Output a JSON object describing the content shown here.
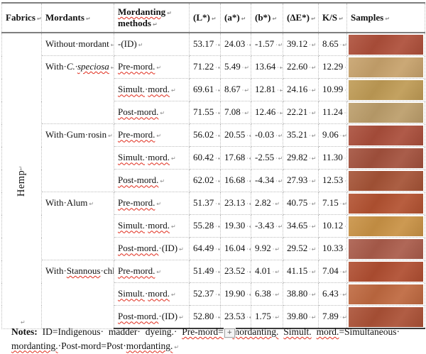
{
  "marks": {
    "cell": "↵",
    "num": "·↵"
  },
  "header": {
    "fabrics": [
      {
        "text": "Fabrics"
      },
      {
        "text": "↵",
        "mark": true
      }
    ],
    "mordants": [
      {
        "text": "Mordants"
      },
      {
        "text": "↵",
        "mark": true
      }
    ],
    "methods_line1": [
      {
        "text": "Mordanting",
        "sq": true
      },
      {
        "text": "↵",
        "mark": true
      }
    ],
    "methods_line2": [
      {
        "text": "methods"
      },
      {
        "text": "↵",
        "mark": true
      }
    ],
    "L": [
      {
        "text": "(L*)"
      },
      {
        "text": "↵",
        "mark": true
      }
    ],
    "a": [
      {
        "text": "(a*)"
      },
      {
        "text": "↵",
        "mark": true
      }
    ],
    "b": [
      {
        "text": "(b*)"
      },
      {
        "text": "↵",
        "mark": true
      }
    ],
    "dE": [
      {
        "text": "(ΔE*)"
      },
      {
        "text": "↵",
        "mark": true
      }
    ],
    "KS": [
      {
        "text": "K/S"
      },
      {
        "text": "↵",
        "mark": true
      }
    ],
    "samples": [
      {
        "text": "Samples"
      },
      {
        "text": "↵",
        "mark": true
      }
    ]
  },
  "fabric": [
    {
      "text": "Hemp"
    },
    {
      "text": "↵",
      "mark": true
    }
  ],
  "mordant_groups": [
    [
      {
        "text": "Without·mordant"
      }
    ],
    [
      {
        "text": "With·"
      },
      {
        "text": "C.·",
        "italic": true
      },
      {
        "text": "speciosa",
        "italic": true,
        "sq": true
      }
    ],
    [
      {
        "text": "With·Gum·rosin"
      }
    ],
    [
      {
        "text": "With·Alum"
      }
    ],
    [
      {
        "text": "With·"
      },
      {
        "text": "Stannous",
        "sq": true
      },
      {
        "text": "·chloride"
      }
    ]
  ],
  "rows": [
    {
      "method_parts": [
        {
          "text": "-(ID)"
        }
      ],
      "L": "53.17",
      "a": "24.03",
      "b": "-1.57",
      "dE": "39.12",
      "KS": "8.65",
      "sample_color": "#ae4f3a"
    },
    {
      "method_parts": [
        {
          "text": "Pre-mord.",
          "sq": true
        }
      ],
      "L": "71.22",
      "a": "5.49",
      "b": "13.64",
      "dE": "22.60",
      "KS": "12.29",
      "sample_color": "#c7a26c"
    },
    {
      "method_parts": [
        {
          "text": "Simult.",
          "sq": true
        },
        {
          "text": "·"
        },
        {
          "text": "mord.",
          "sq": true
        }
      ],
      "L": "69.61",
      "a": "8.67",
      "b": "12.81",
      "dE": "24.16",
      "KS": "10.99",
      "sample_color": "#bf9b55"
    },
    {
      "method_parts": [
        {
          "text": "Post-mord.",
          "sq": true
        }
      ],
      "L": "71.55",
      "a": "7.08",
      "b": "12.46",
      "dE": "22.21",
      "KS": "11.24",
      "sample_color": "#bc9e6b"
    },
    {
      "method_parts": [
        {
          "text": "Pre-mord.",
          "sq": true
        }
      ],
      "L": "56.02",
      "a": "20.55",
      "b": "-0.03",
      "dE": "35.21",
      "KS": "9.06",
      "sample_color": "#aa4e3b"
    },
    {
      "method_parts": [
        {
          "text": "Simult.",
          "sq": true
        },
        {
          "text": "·"
        },
        {
          "text": "mord.",
          "sq": true
        }
      ],
      "L": "60.42",
      "a": "17.68",
      "b": "-2.55",
      "dE": "29.82",
      "KS": "11.30",
      "sample_color": "#a3513d"
    },
    {
      "method_parts": [
        {
          "text": "Post-mord.",
          "sq": true
        }
      ],
      "L": "62.02",
      "a": "16.68",
      "b": "-4.34",
      "dE": "27.93",
      "KS": "12.53",
      "sample_color": "#a55336"
    },
    {
      "method_parts": [
        {
          "text": "Pre-mord.",
          "sq": true
        }
      ],
      "L": "51.37",
      "a": "23.13",
      "b": "2.82",
      "dE": "40.75",
      "KS": "7.15",
      "sample_color": "#b35231"
    },
    {
      "method_parts": [
        {
          "text": "Simult.",
          "sq": true
        },
        {
          "text": "·"
        },
        {
          "text": "mord.",
          "sq": true
        }
      ],
      "L": "55.28",
      "a": "19.30",
      "b": "-3.43",
      "dE": "34.65",
      "KS": "10.12",
      "sample_color": "#c99245"
    },
    {
      "method_parts": [
        {
          "text": "Post-mord.",
          "sq": true
        },
        {
          "text": "·"
        },
        {
          "text": "(ID)"
        }
      ],
      "L": "64.49",
      "a": "16.04",
      "b": "9.92",
      "dE": "29.52",
      "KS": "10.33",
      "sample_color": "#aa5c4b"
    },
    {
      "method_parts": [
        {
          "text": "Pre-mord.",
          "sq": true
        }
      ],
      "L": "51.49",
      "a": "23.52",
      "b": "4.01",
      "dE": "41.15",
      "KS": "7.04",
      "sample_color": "#b04e31"
    },
    {
      "method_parts": [
        {
          "text": "Simult.",
          "sq": true
        },
        {
          "text": "·"
        },
        {
          "text": "mord.",
          "sq": true
        }
      ],
      "L": "52.37",
      "a": "19.90",
      "b": "6.38",
      "dE": "38.80",
      "KS": "6.43",
      "sample_color": "#bf6940"
    },
    {
      "method_parts": [
        {
          "text": "Post-mord.",
          "sq": true
        },
        {
          "text": "·"
        },
        {
          "text": "(ID)"
        }
      ],
      "L": "52.80",
      "a": "23.53",
      "b": "1.75",
      "dE": "39.80",
      "KS": "7.89",
      "sample_color": "#ab5136"
    }
  ],
  "notes": {
    "line1": [
      {
        "text": "Notes:",
        "bold": true
      },
      {
        "text": " ID=Indigenous· madder· dyeing.· "
      },
      {
        "text": "Pre-mord=",
        "sq": true
      },
      {
        "text": "+",
        "box": true
      },
      {
        "text": "mordanting.",
        "sq": true
      },
      {
        "text": " "
      },
      {
        "text": "Simult.",
        "sq": true
      },
      {
        "text": " "
      },
      {
        "text": "mord.",
        "sq": true
      },
      {
        "text": "=Simultaneous·"
      }
    ],
    "line2": [
      {
        "text": "mordanting.",
        "sq": true
      },
      {
        "text": "·Post-mord=Post·"
      },
      {
        "text": "mordanting.",
        "sq": true
      },
      {
        "text": "↵",
        "mark": true
      }
    ]
  }
}
